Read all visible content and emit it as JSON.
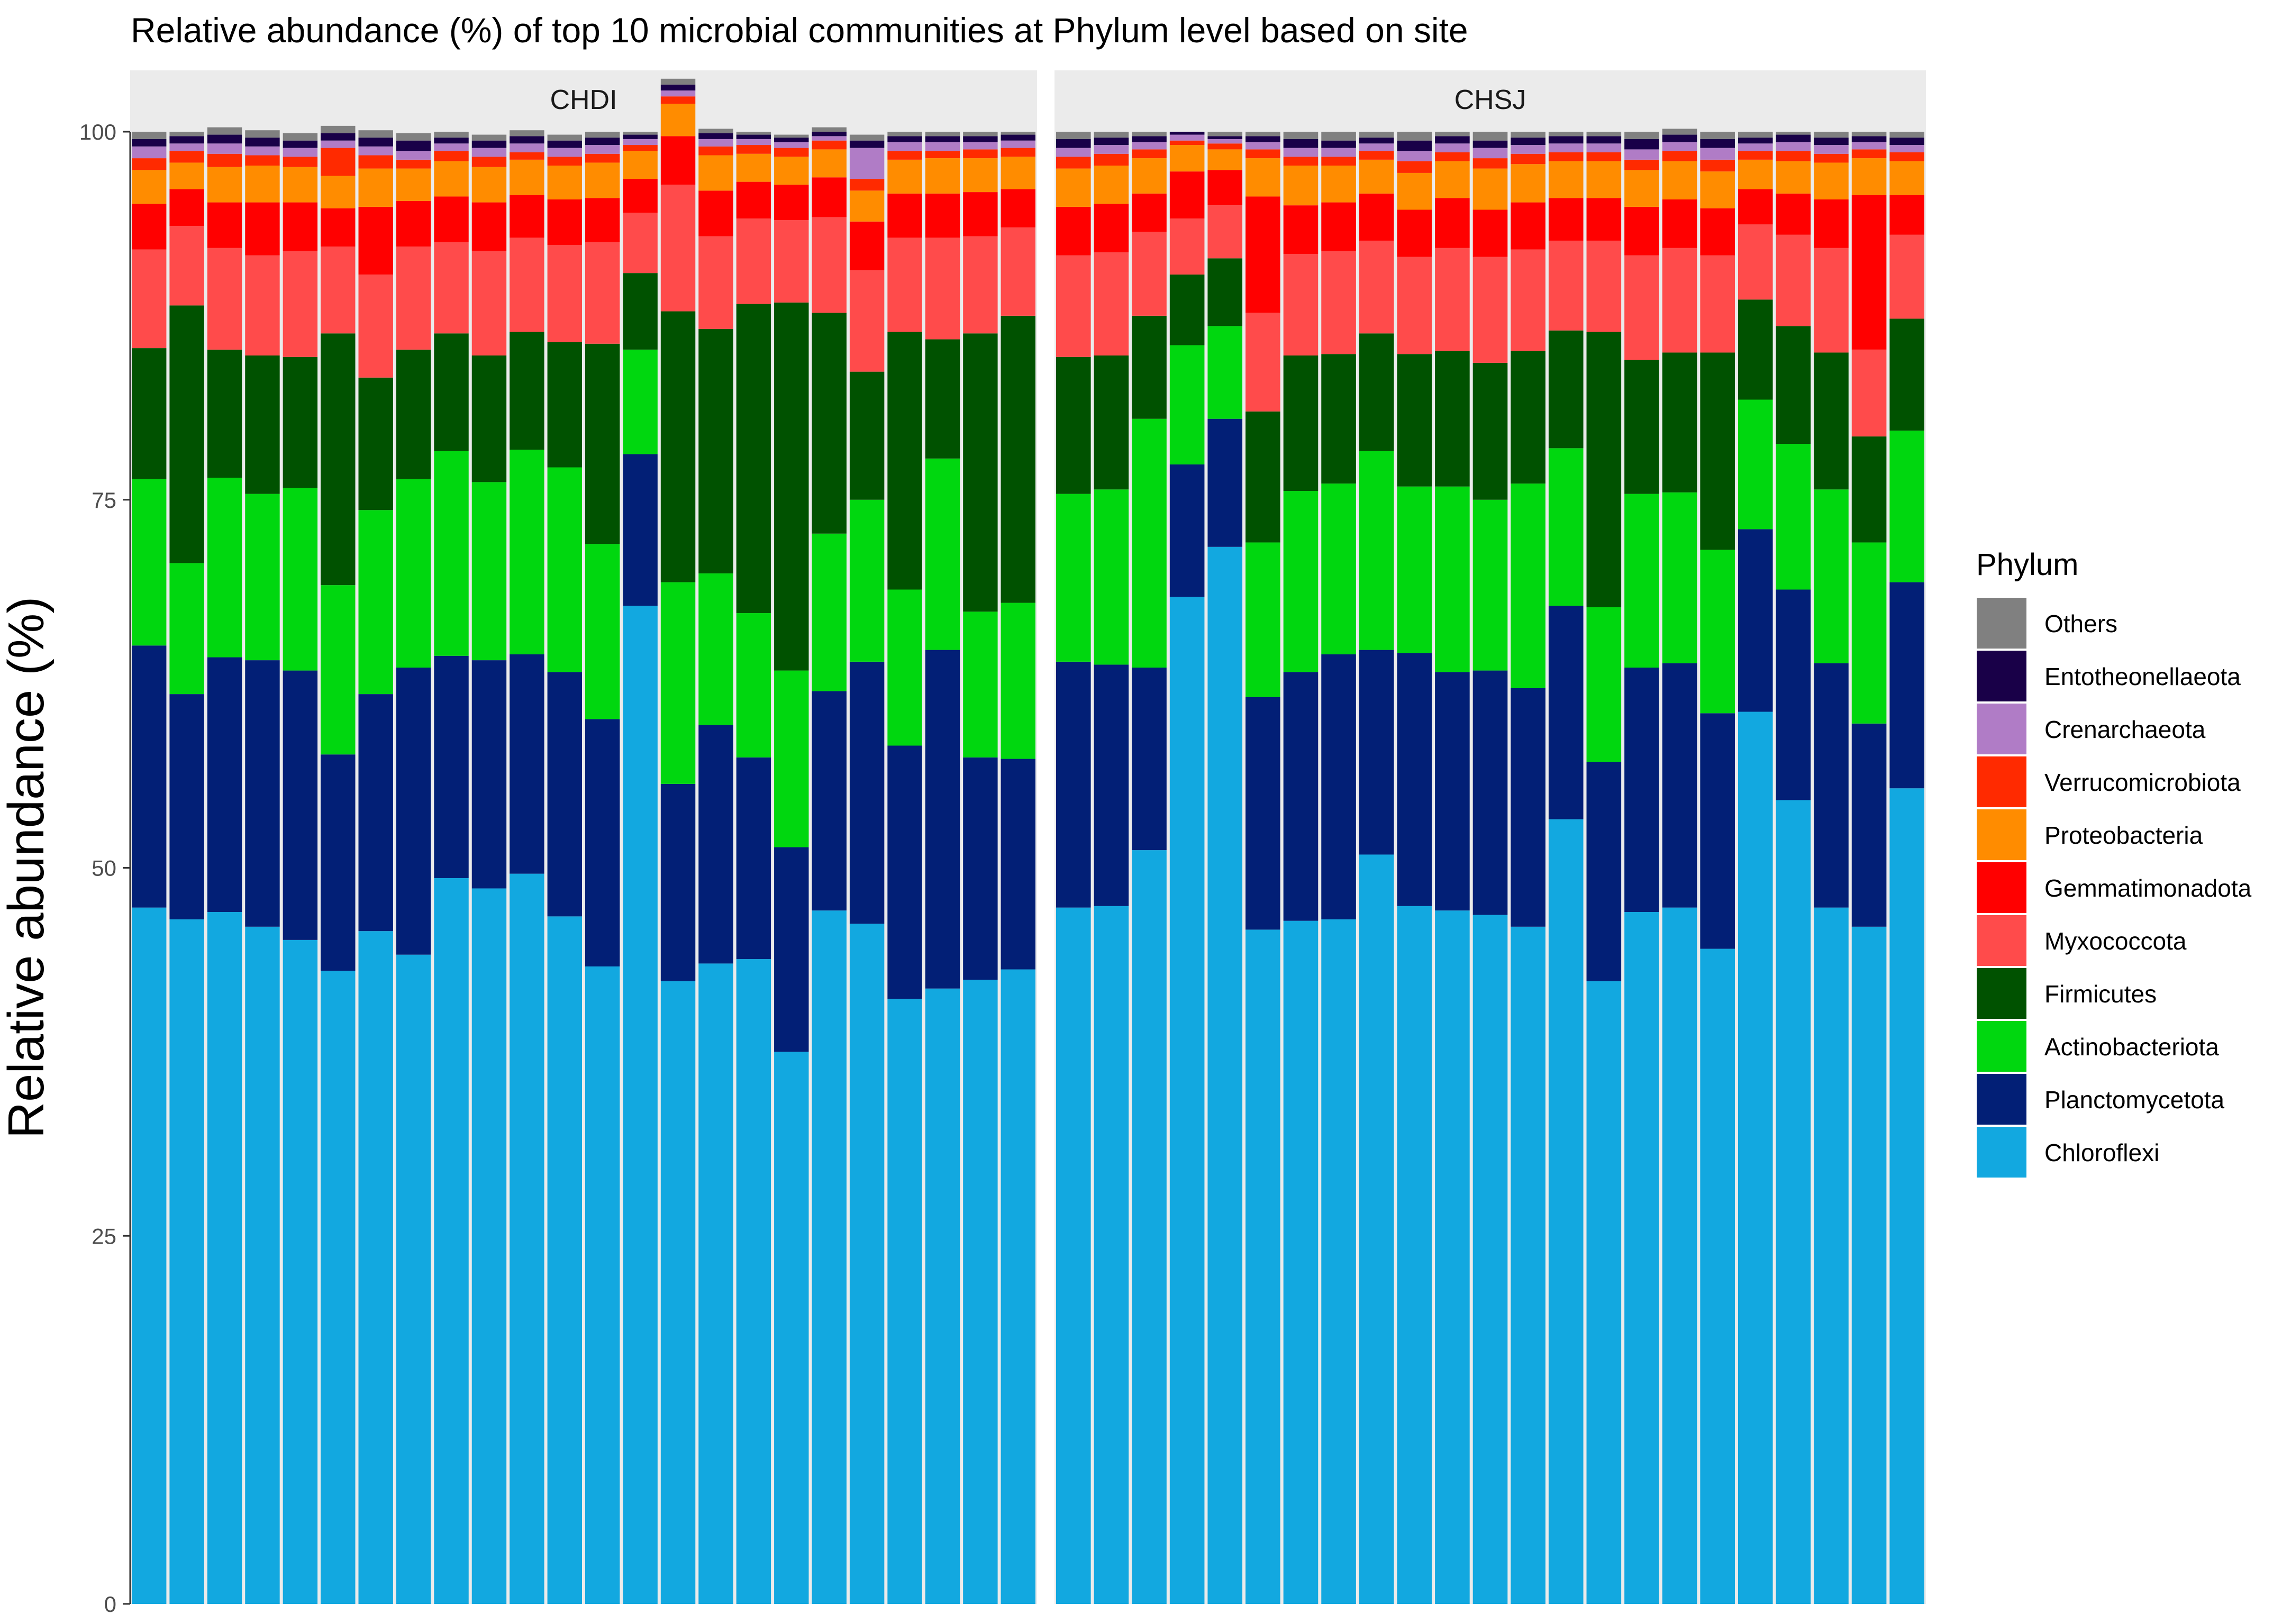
{
  "chart_data": {
    "type": "bar",
    "stacked": true,
    "title": "Relative abundance (%) of top 10 microbial communities at Phylum level based on site",
    "xlabel": "",
    "ylabel": "Relative abundance (%)",
    "ylim": [
      0,
      100
    ],
    "yticks": [
      0,
      25,
      50,
      75,
      100
    ],
    "legend_title": "Phylum",
    "legend_position": "right",
    "facets": [
      "CHDI",
      "CHSJ"
    ],
    "series": [
      {
        "name": "Chloroflexi",
        "color": "#12A8E0"
      },
      {
        "name": "Planctomycetota",
        "color": "#021F76"
      },
      {
        "name": "Actinobacteriota",
        "color": "#00D70F"
      },
      {
        "name": "Firmicutes",
        "color": "#005200"
      },
      {
        "name": "Myxococcota",
        "color": "#FF4B4B"
      },
      {
        "name": "Gemmatimonadota",
        "color": "#FF0000"
      },
      {
        "name": "Proteobacteria",
        "color": "#FF8C00"
      },
      {
        "name": "Verrucomicrobiota",
        "color": "#FF2A00"
      },
      {
        "name": "Crenarchaeota",
        "color": "#B07CC6"
      },
      {
        "name": "Entotheonellaeota",
        "color": "#190048"
      },
      {
        "name": "Others",
        "color": "#808080"
      }
    ],
    "legend_order": [
      "Others",
      "Entotheonellaeota",
      "Crenarchaeota",
      "Verrucomicrobiota",
      "Proteobacteria",
      "Gemmatimonadota",
      "Myxococcota",
      "Firmicutes",
      "Actinobacteriota",
      "Planctomycetota",
      "Chloroflexi"
    ],
    "samples": {
      "CHDI": [
        [
          47.3,
          17.8,
          11.3,
          8.9,
          6.7,
          3.1,
          2.3,
          0.8,
          0.8,
          0.5,
          0.5
        ],
        [
          46.5,
          15.3,
          8.9,
          17.5,
          5.4,
          2.5,
          1.8,
          0.8,
          0.5,
          0.5,
          0.3
        ],
        [
          47.0,
          17.3,
          12.2,
          8.7,
          6.9,
          3.1,
          2.4,
          0.9,
          0.7,
          0.6,
          0.5
        ],
        [
          46.0,
          18.1,
          11.3,
          9.4,
          6.8,
          3.6,
          2.5,
          0.7,
          0.6,
          0.6,
          0.5
        ],
        [
          45.1,
          18.3,
          12.4,
          8.9,
          7.2,
          3.3,
          2.4,
          0.7,
          0.6,
          0.5,
          0.5
        ],
        [
          43.0,
          14.7,
          11.5,
          17.1,
          5.9,
          2.6,
          2.2,
          1.9,
          0.5,
          0.5,
          0.5
        ],
        [
          45.7,
          16.1,
          12.5,
          9.0,
          7.0,
          4.6,
          2.6,
          0.9,
          0.6,
          0.6,
          0.5
        ],
        [
          44.1,
          19.5,
          12.8,
          8.8,
          7.0,
          3.1,
          2.2,
          0.6,
          0.6,
          0.7,
          0.5
        ],
        [
          49.3,
          15.1,
          13.9,
          8.0,
          6.2,
          3.1,
          2.4,
          0.7,
          0.5,
          0.4,
          0.4
        ],
        [
          48.6,
          15.5,
          12.1,
          8.6,
          7.1,
          3.3,
          2.4,
          0.7,
          0.6,
          0.5,
          0.4
        ],
        [
          49.6,
          14.9,
          13.9,
          8.0,
          6.4,
          2.9,
          2.4,
          0.5,
          0.6,
          0.5,
          0.4
        ],
        [
          46.7,
          16.6,
          13.9,
          8.5,
          6.6,
          3.1,
          2.3,
          0.6,
          0.6,
          0.5,
          0.4
        ],
        [
          43.3,
          16.8,
          11.9,
          13.6,
          6.9,
          3.0,
          2.4,
          0.6,
          0.6,
          0.5,
          0.4
        ],
        [
          67.8,
          10.3,
          7.1,
          5.2,
          4.1,
          2.3,
          1.9,
          0.4,
          0.4,
          0.3,
          0.2
        ],
        [
          42.3,
          13.4,
          13.7,
          18.4,
          8.6,
          3.3,
          2.2,
          0.5,
          0.4,
          0.4,
          0.4
        ],
        [
          43.5,
          16.2,
          10.3,
          16.6,
          6.3,
          3.1,
          2.4,
          0.6,
          0.5,
          0.4,
          0.3
        ],
        [
          43.8,
          13.7,
          9.8,
          21.0,
          5.8,
          2.5,
          1.9,
          0.6,
          0.4,
          0.3,
          0.2
        ],
        [
          37.5,
          13.9,
          12.0,
          25.0,
          5.6,
          2.4,
          1.9,
          0.6,
          0.4,
          0.3,
          0.2
        ],
        [
          47.1,
          14.9,
          10.7,
          15.0,
          6.5,
          2.7,
          1.9,
          0.6,
          0.3,
          0.3,
          0.3
        ],
        [
          46.2,
          17.8,
          11.0,
          8.7,
          6.9,
          3.3,
          2.1,
          0.8,
          2.1,
          0.5,
          0.4
        ],
        [
          41.1,
          17.2,
          10.6,
          17.5,
          6.4,
          3.0,
          2.3,
          0.6,
          0.6,
          0.4,
          0.3
        ],
        [
          41.8,
          23.0,
          13.0,
          8.1,
          6.9,
          3.0,
          2.4,
          0.5,
          0.6,
          0.4,
          0.3
        ],
        [
          42.4,
          15.1,
          9.9,
          18.9,
          6.6,
          3.0,
          2.3,
          0.6,
          0.5,
          0.4,
          0.3
        ],
        [
          43.1,
          14.3,
          10.6,
          19.5,
          6.0,
          2.6,
          2.2,
          0.6,
          0.5,
          0.4,
          0.2
        ]
      ],
      "CHSJ": [
        [
          47.3,
          16.7,
          11.4,
          9.3,
          6.9,
          3.3,
          2.6,
          0.8,
          0.6,
          0.6,
          0.5
        ],
        [
          47.4,
          16.4,
          11.9,
          9.1,
          7.0,
          3.3,
          2.6,
          0.8,
          0.6,
          0.5,
          0.4
        ],
        [
          51.2,
          12.4,
          16.9,
          7.0,
          5.7,
          2.6,
          2.4,
          0.6,
          0.5,
          0.4,
          0.3
        ],
        [
          68.4,
          9.0,
          8.1,
          4.8,
          3.8,
          3.2,
          1.8,
          0.3,
          0.4,
          0.2,
          0.0
        ],
        [
          71.8,
          8.7,
          6.3,
          4.6,
          3.6,
          2.4,
          1.4,
          0.4,
          0.3,
          0.2,
          0.3
        ],
        [
          45.8,
          15.8,
          10.5,
          8.9,
          6.7,
          7.9,
          2.6,
          0.6,
          0.5,
          0.4,
          0.3
        ],
        [
          46.4,
          16.9,
          12.3,
          9.2,
          6.9,
          3.3,
          2.7,
          0.6,
          0.6,
          0.6,
          0.5
        ],
        [
          46.5,
          18.0,
          11.6,
          8.8,
          7.0,
          3.3,
          2.5,
          0.6,
          0.6,
          0.5,
          0.6
        ],
        [
          50.9,
          13.9,
          13.5,
          8.0,
          6.3,
          3.2,
          2.3,
          0.6,
          0.5,
          0.4,
          0.4
        ],
        [
          47.4,
          17.2,
          11.3,
          9.0,
          6.6,
          3.2,
          2.5,
          0.8,
          0.7,
          0.7,
          0.6
        ],
        [
          47.1,
          16.2,
          12.6,
          9.2,
          7.0,
          3.4,
          2.5,
          0.6,
          0.6,
          0.5,
          0.3
        ],
        [
          46.8,
          16.6,
          11.6,
          9.3,
          7.2,
          3.2,
          2.8,
          0.7,
          0.7,
          0.5,
          0.6
        ],
        [
          46.0,
          16.2,
          13.9,
          9.0,
          6.9,
          3.2,
          2.6,
          0.7,
          0.6,
          0.5,
          0.4
        ],
        [
          53.3,
          14.5,
          10.7,
          8.0,
          6.1,
          2.9,
          2.5,
          0.6,
          0.6,
          0.5,
          0.3
        ],
        [
          42.3,
          14.9,
          10.5,
          18.7,
          6.2,
          2.9,
          2.5,
          0.6,
          0.6,
          0.5,
          0.3
        ],
        [
          47.0,
          16.6,
          11.8,
          9.1,
          7.1,
          3.3,
          2.5,
          0.7,
          0.7,
          0.7,
          0.5
        ],
        [
          47.3,
          16.6,
          11.6,
          9.5,
          7.1,
          3.3,
          2.6,
          0.7,
          0.6,
          0.5,
          0.4
        ],
        [
          44.5,
          16.0,
          11.1,
          13.4,
          6.6,
          3.2,
          2.5,
          0.8,
          0.8,
          0.6,
          0.5
        ],
        [
          60.6,
          12.4,
          8.8,
          6.8,
          5.1,
          2.4,
          2.0,
          0.6,
          0.5,
          0.4,
          0.4
        ],
        [
          54.6,
          14.3,
          9.9,
          8.0,
          6.2,
          2.8,
          2.2,
          0.7,
          0.6,
          0.5,
          0.2
        ],
        [
          47.3,
          16.6,
          11.8,
          9.3,
          7.1,
          3.3,
          2.5,
          0.6,
          0.6,
          0.5,
          0.4
        ],
        [
          46.0,
          13.8,
          12.3,
          7.2,
          5.9,
          10.5,
          2.5,
          0.6,
          0.5,
          0.4,
          0.3
        ],
        [
          55.4,
          14.0,
          10.3,
          7.6,
          5.7,
          2.7,
          2.3,
          0.6,
          0.5,
          0.5,
          0.4
        ]
      ]
    }
  }
}
